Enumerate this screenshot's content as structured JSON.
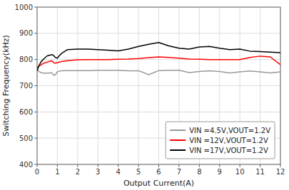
{
  "chart_data": {
    "type": "line",
    "xlabel": "Output Current(A)",
    "ylabel": "Switching Frequency(kHz)",
    "xlim": [
      0,
      12
    ],
    "ylim": [
      400,
      1000
    ],
    "xticks": [
      0,
      1,
      2,
      3,
      4,
      5,
      6,
      7,
      8,
      9,
      10,
      11,
      12
    ],
    "yticks": [
      400,
      500,
      600,
      700,
      800,
      900,
      1000
    ],
    "grid": true,
    "legend": "lower right",
    "series": [
      {
        "name": "VIN =4.5V,VOUT=1.2V",
        "color": "#999999",
        "x": [
          0.0,
          0.05,
          0.1,
          0.2,
          0.3,
          0.4,
          0.5,
          0.6,
          0.7,
          0.75,
          0.8,
          0.85,
          0.9,
          1.0,
          1.1,
          1.2,
          1.5,
          2.0,
          2.5,
          3.0,
          3.5,
          4.0,
          4.5,
          5.0,
          5.2,
          5.5,
          6.0,
          6.5,
          7.0,
          7.5,
          8.0,
          8.5,
          9.0,
          9.5,
          10.0,
          10.5,
          11.0,
          11.5,
          12.0
        ],
        "values": [
          762,
          758,
          754,
          750,
          748,
          748,
          748,
          748,
          750,
          748,
          742,
          740,
          742,
          753,
          756,
          757,
          758,
          758,
          758,
          759,
          759,
          759,
          757,
          757,
          752,
          742,
          758,
          759,
          759,
          750,
          754,
          757,
          754,
          749,
          753,
          756,
          753,
          749,
          753
        ]
      },
      {
        "name": "VIN =12V,VOUT=1.2V",
        "color": "#ff0000",
        "x": [
          0.0,
          0.05,
          0.1,
          0.2,
          0.3,
          0.4,
          0.5,
          0.6,
          0.7,
          0.75,
          0.8,
          0.85,
          0.9,
          1.0,
          1.1,
          1.2,
          1.5,
          2.0,
          2.5,
          3.0,
          3.5,
          4.0,
          4.5,
          5.0,
          5.5,
          6.0,
          6.5,
          7.0,
          7.5,
          8.0,
          8.5,
          9.0,
          9.5,
          10.0,
          10.5,
          11.0,
          11.5,
          12.0
        ],
        "values": [
          770,
          772,
          775,
          780,
          785,
          788,
          790,
          793,
          795,
          793,
          790,
          787,
          786,
          788,
          790,
          792,
          796,
          799,
          800,
          800,
          800,
          801,
          802,
          804,
          807,
          810,
          808,
          805,
          802,
          801,
          800,
          800,
          800,
          800,
          808,
          813,
          810,
          780
        ]
      },
      {
        "name": "VIN =17V,VOUT=1.2V",
        "color": "#000000",
        "x": [
          0.0,
          0.05,
          0.1,
          0.2,
          0.3,
          0.4,
          0.5,
          0.6,
          0.7,
          0.75,
          0.8,
          0.85,
          0.9,
          1.0,
          1.1,
          1.2,
          1.5,
          2.0,
          2.5,
          3.0,
          3.5,
          4.0,
          4.5,
          5.0,
          5.5,
          6.0,
          6.5,
          7.0,
          7.5,
          8.0,
          8.5,
          9.0,
          9.5,
          10.0,
          10.5,
          11.0,
          11.5,
          12.0
        ],
        "values": [
          758,
          768,
          778,
          792,
          800,
          808,
          814,
          816,
          818,
          818,
          817,
          812,
          808,
          805,
          815,
          823,
          838,
          840,
          840,
          838,
          836,
          833,
          840,
          850,
          858,
          865,
          852,
          843,
          840,
          848,
          850,
          843,
          838,
          840,
          832,
          830,
          828,
          826
        ]
      }
    ]
  }
}
